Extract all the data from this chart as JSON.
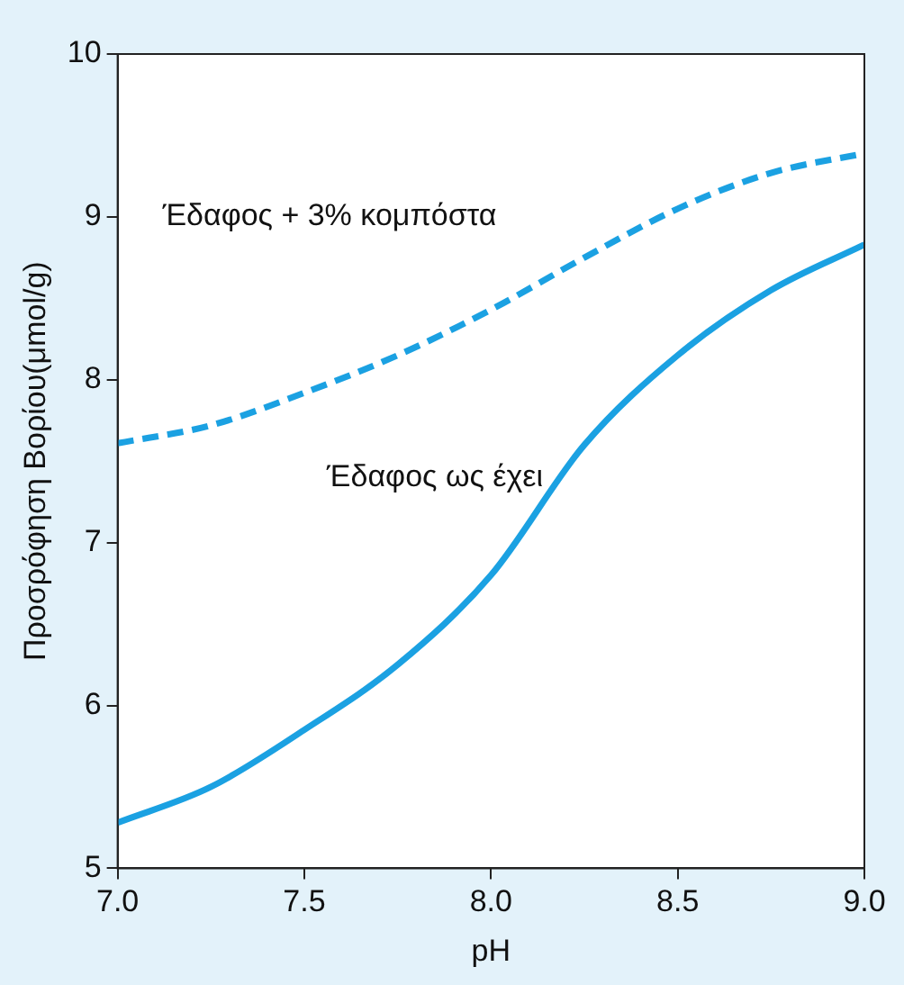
{
  "chart_data": {
    "type": "line",
    "xlabel": "pH",
    "ylabel": "Προσρόφηση Βορίου(μmol/g)",
    "x": [
      7.0,
      7.25,
      7.5,
      7.75,
      8.0,
      8.25,
      8.5,
      8.75,
      9.0
    ],
    "series": [
      {
        "name": "Έδαφος + 3% κομπόστα",
        "color": "#1ba1e2",
        "line_style": "dashed",
        "values": [
          7.61,
          7.72,
          7.92,
          8.15,
          8.43,
          8.75,
          9.05,
          9.27,
          9.39
        ]
      },
      {
        "name": "Έδαφος ως έχει",
        "color": "#1ba1e2",
        "line_style": "solid",
        "values": [
          5.28,
          5.5,
          5.85,
          6.25,
          6.8,
          7.6,
          8.15,
          8.55,
          8.83
        ]
      }
    ],
    "xlim": [
      7,
      9
    ],
    "xticks": [
      {
        "value": 7,
        "label": "7.0"
      },
      {
        "value": 7.5,
        "label": "7.5"
      },
      {
        "value": 8,
        "label": "8.0"
      },
      {
        "value": 8.5,
        "label": "8.5"
      },
      {
        "value": 9,
        "label": "9.0"
      }
    ],
    "ylim": [
      5,
      10
    ],
    "yticks": [
      5,
      6,
      7,
      8,
      9,
      10
    ],
    "grid": false,
    "legend": false,
    "marker": "none"
  }
}
